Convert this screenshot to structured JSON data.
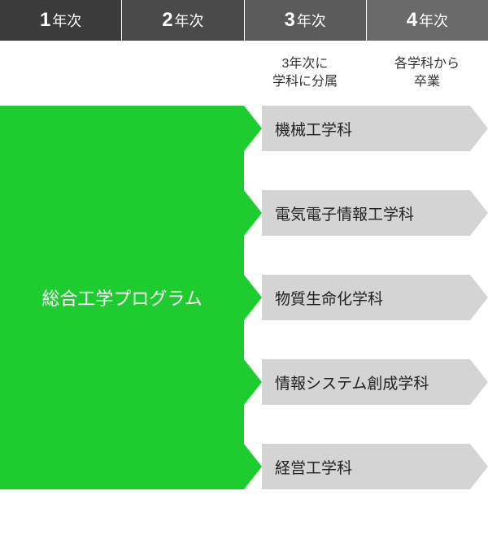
{
  "header": {
    "cells": [
      {
        "num": "1",
        "suffix": "年次",
        "bg": "#3b3b3b"
      },
      {
        "num": "2",
        "suffix": "年次",
        "bg": "#4a4a4a"
      },
      {
        "num": "3",
        "suffix": "年次",
        "bg": "#5a5a5a"
      },
      {
        "num": "4",
        "suffix": "年次",
        "bg": "#6a6a6a"
      }
    ]
  },
  "subheader": {
    "col3": "3年次に\n学科に分属",
    "col4": "各学科から\n卒業"
  },
  "program": {
    "label": "総合工学プログラム",
    "bg": "#1fcc2f",
    "text_color": "#ffffff"
  },
  "departments": [
    {
      "label": "機械工学科"
    },
    {
      "label": "電気電子情報工学科"
    },
    {
      "label": "物質生命化学科"
    },
    {
      "label": "情報システム創成学科"
    },
    {
      "label": "経営工学科"
    }
  ],
  "style": {
    "arrow_bg": "#d4d4d4",
    "arrow_height": 56,
    "arrow_spacing": 104,
    "arrow_top_offset": 0,
    "green_width": 300,
    "diagram_width": 600,
    "green_tail_inset": 40,
    "arrow_head_width": 22
  }
}
